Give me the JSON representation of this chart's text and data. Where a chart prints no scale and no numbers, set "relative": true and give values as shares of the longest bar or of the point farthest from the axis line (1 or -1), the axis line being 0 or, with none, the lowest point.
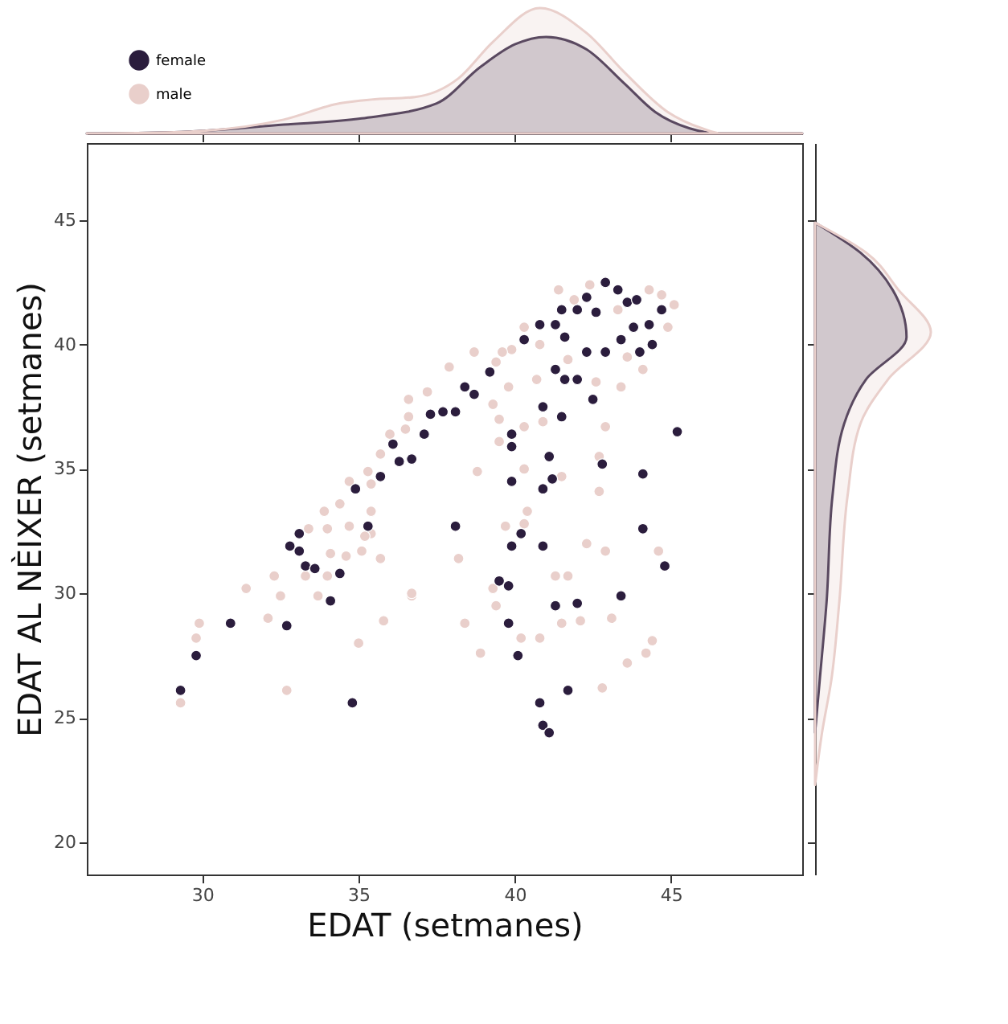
{
  "chart_data": [
    {
      "type": "area",
      "relative": true,
      "xlim": [
        26.3,
        49.2
      ],
      "xticks": [
        30,
        35,
        40,
        45
      ],
      "tick_labels": false,
      "series": [
        {
          "color": "#2b1d3d",
          "x": [
            26.3,
            29.1,
            32.6,
            35.1,
            37.5,
            38.9,
            40,
            41,
            42.3,
            43.5,
            44.5,
            45.6,
            46.6,
            49.2
          ],
          "values": [
            0,
            0.01,
            0.07,
            0.12,
            0.24,
            0.53,
            0.71,
            0.77,
            0.67,
            0.4,
            0.17,
            0.04,
            0,
            0
          ]
        },
        {
          "color": "#e9cfcb",
          "x": [
            26.3,
            29.1,
            32.6,
            34.4,
            35.4,
            36.8,
            38.2,
            39.3,
            40.8,
            42.3,
            43.5,
            44.9,
            46,
            46.6,
            49.2
          ],
          "values": [
            0,
            0.01,
            0.11,
            0.24,
            0.27,
            0.29,
            0.44,
            0.73,
            1,
            0.8,
            0.49,
            0.17,
            0.04,
            0,
            0
          ]
        }
      ]
    },
    {
      "type": "scatter",
      "xlabel": "EDAT (setmanes)",
      "ylabel": "EDAT AL NÈIXER (setmanes)",
      "xlim": [
        26.3,
        49.2
      ],
      "xticks": [
        30,
        35,
        40,
        45
      ],
      "ylim": [
        18.7,
        48.1
      ],
      "yticks": [
        20,
        25,
        30,
        35,
        40,
        45
      ],
      "legend": "top left",
      "marker": "circle",
      "series": [
        {
          "name": "female",
          "color": "#2b1d3d",
          "x": [
            29.3,
            29.8,
            30.9,
            32.7,
            34.8,
            33.1,
            32.8,
            33.1,
            33.3,
            33.6,
            34.4,
            34.1,
            35.3,
            38.1,
            34.9,
            36.1,
            36.3,
            35.7,
            36.7,
            37.1,
            37.3,
            37.7,
            38.1,
            38.4,
            38.7,
            39.2,
            40.3,
            40.8,
            41.3,
            41.5,
            42.0,
            42.3,
            42.6,
            42.9,
            43.3,
            43.6,
            43.9,
            44.7,
            41.6,
            42.3,
            42.9,
            43.4,
            43.8,
            44.3,
            44.0,
            44.4,
            41.3,
            41.6,
            42.0,
            42.5,
            40.9,
            41.5,
            45.2,
            39.9,
            39.9,
            41.1,
            42.8,
            44.1,
            39.9,
            40.9,
            41.2,
            44.1,
            40.2,
            39.9,
            40.9,
            44.8,
            39.5,
            39.8,
            41.3,
            42.0,
            43.4,
            39.8,
            40.1,
            41.7,
            40.8,
            40.9,
            41.1
          ],
          "values": [
            26.1,
            27.5,
            28.8,
            28.7,
            25.6,
            32.4,
            31.9,
            31.7,
            31.1,
            31.0,
            30.8,
            29.7,
            32.7,
            32.7,
            34.2,
            36.0,
            35.3,
            34.7,
            35.4,
            36.4,
            37.2,
            37.3,
            37.3,
            38.3,
            38.0,
            38.9,
            40.2,
            40.8,
            40.8,
            41.4,
            41.4,
            41.9,
            41.3,
            42.5,
            42.2,
            41.7,
            41.8,
            41.4,
            40.3,
            39.7,
            39.7,
            40.2,
            40.7,
            40.8,
            39.7,
            40.0,
            39.0,
            38.6,
            38.6,
            37.8,
            37.5,
            37.1,
            36.5,
            36.4,
            35.9,
            35.5,
            35.2,
            34.8,
            34.5,
            34.2,
            34.6,
            32.6,
            32.4,
            31.9,
            31.9,
            31.1,
            30.5,
            30.3,
            29.5,
            29.6,
            29.9,
            28.8,
            27.5,
            26.1,
            25.6,
            24.7,
            24.4
          ]
        },
        {
          "name": "male",
          "color": "#e9cfcb",
          "x": [
            29.9,
            29.8,
            29.3,
            32.7,
            31.4,
            32.5,
            32.1,
            33.7,
            34.0,
            33.3,
            32.3,
            34.0,
            34.7,
            35.4,
            35.7,
            35.1,
            34.6,
            34.1,
            35.0,
            35.8,
            36.7,
            33.9,
            35.4,
            35.7,
            35.3,
            34.7,
            35.4,
            34.4,
            33.4,
            35.2,
            44.7,
            41.9,
            43.3,
            43.6,
            44.1,
            40.8,
            41.7,
            39.9,
            39.6,
            39.4,
            39.8,
            40.7,
            42.6,
            43.4,
            44.9,
            39.3,
            39.5,
            40.3,
            39.5,
            40.9,
            42.9,
            36.5,
            36.0,
            36.6,
            38.8,
            40.3,
            41.5,
            42.7,
            42.7,
            40.4,
            39.7,
            40.3,
            38.2,
            42.3,
            42.9,
            44.6,
            39.3,
            39.4,
            38.4,
            40.2,
            40.8,
            41.5,
            42.1,
            43.1,
            44.4,
            44.2,
            43.6,
            38.9,
            42.8,
            41.3,
            41.7,
            36.7,
            42.4,
            41.4,
            44.3,
            45.1,
            40.3,
            38.7,
            37.9,
            37.2,
            36.6
          ],
          "values": [
            28.8,
            28.2,
            25.6,
            26.1,
            30.2,
            29.9,
            29.0,
            29.9,
            30.7,
            30.7,
            30.7,
            32.6,
            32.7,
            32.4,
            31.4,
            31.7,
            31.5,
            31.6,
            28.0,
            28.9,
            29.9,
            33.3,
            33.3,
            35.6,
            34.9,
            34.5,
            34.4,
            33.6,
            32.6,
            32.3,
            42.0,
            41.8,
            41.4,
            39.5,
            39.0,
            40.0,
            39.4,
            39.8,
            39.7,
            39.3,
            38.3,
            38.6,
            38.5,
            38.3,
            40.7,
            37.6,
            37.0,
            36.7,
            36.1,
            36.9,
            36.7,
            36.6,
            36.4,
            37.1,
            34.9,
            35.0,
            34.7,
            35.5,
            34.1,
            33.3,
            32.7,
            32.8,
            31.4,
            32.0,
            31.7,
            31.7,
            30.2,
            29.5,
            28.8,
            28.2,
            28.2,
            28.8,
            28.9,
            29.0,
            28.1,
            27.6,
            27.2,
            27.6,
            26.2,
            30.7,
            30.7,
            30.0,
            42.4,
            42.2,
            42.2,
            41.6,
            40.7,
            39.7,
            39.1,
            38.1,
            37.8
          ]
        }
      ]
    },
    {
      "type": "area",
      "relative": true,
      "orientation": "horizontal",
      "ylim": [
        18.7,
        48.1
      ],
      "yticks": [
        20,
        25,
        30,
        35,
        40,
        45
      ],
      "tick_labels": false,
      "series": [
        {
          "color": "#2b1d3d",
          "x": [
            44.9,
            43.7,
            42.2,
            40.3,
            38.6,
            36.8,
            33.9,
            29.7,
            26.5,
            24.4
          ],
          "values": [
            0,
            0.39,
            0.67,
            0.79,
            0.44,
            0.25,
            0.15,
            0.1,
            0.04,
            0
          ]
        },
        {
          "color": "#e9cfcb",
          "x": [
            44.9,
            43.7,
            42.2,
            40.5,
            38.6,
            36.8,
            33.9,
            29.7,
            26.5,
            24.4,
            22.3
          ],
          "values": [
            0,
            0.44,
            0.72,
            1,
            0.63,
            0.39,
            0.28,
            0.21,
            0.14,
            0.06,
            0
          ]
        }
      ]
    }
  ]
}
